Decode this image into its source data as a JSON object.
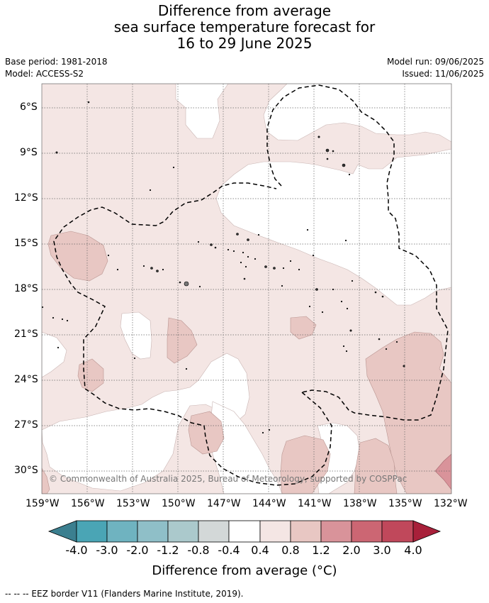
{
  "title": {
    "line1": "Difference from average",
    "line2": "sea surface temperature forecast for",
    "line3": "16 to 29 June 2025"
  },
  "meta": {
    "base_period": "Base period: 1981-2018",
    "model": "Model: ACCESS-S2",
    "model_run": "Model run: 09/06/2025",
    "issued": "Issued: 11/06/2025"
  },
  "map": {
    "copyright": "© Commonwealth of Australia 2025, Bureau of Meteorology, supported by COSPPac",
    "lat_labels": [
      "6°S",
      "9°S",
      "12°S",
      "15°S",
      "18°S",
      "21°S",
      "24°S",
      "27°S",
      "30°S"
    ],
    "lon_labels": [
      "159°W",
      "156°W",
      "153°W",
      "150°W",
      "147°W",
      "144°W",
      "141°W",
      "138°W",
      "135°W",
      "132°W"
    ]
  },
  "colorbar": {
    "labels": [
      "-4.0",
      "-3.0",
      "-2.0",
      "-1.2",
      "-0.8",
      "-0.4",
      "0.4",
      "0.8",
      "1.2",
      "2.0",
      "3.0",
      "4.0"
    ],
    "colors": [
      "#3b7f8f",
      "#4aa5b5",
      "#6fb3c0",
      "#8fbfc8",
      "#abc9cc",
      "#d3d8d8",
      "#ffffff",
      "#f4e6e4",
      "#e8c7c3",
      "#d9939a",
      "#cc6673",
      "#c0485b",
      "#a8203a"
    ],
    "title": "Difference from average (°C)"
  },
  "legend": {
    "eez": "-- -- -- EEZ border V11 (Flanders Marine Institute, 2019)."
  }
}
